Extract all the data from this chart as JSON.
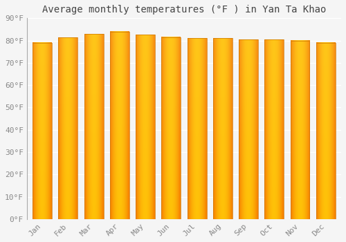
{
  "title": "Average monthly temperatures (°F ) in Yan Ta Khao",
  "months": [
    "Jan",
    "Feb",
    "Mar",
    "Apr",
    "May",
    "Jun",
    "Jul",
    "Aug",
    "Sep",
    "Oct",
    "Nov",
    "Dec"
  ],
  "values": [
    79.0,
    81.3,
    82.9,
    84.0,
    82.5,
    81.5,
    81.0,
    81.0,
    80.5,
    80.5,
    80.0,
    79.0
  ],
  "bar_color_center": "#FFB300",
  "bar_color_edge": "#F57C00",
  "bar_color_bottom": "#FFD54F",
  "ylim": [
    0,
    90
  ],
  "yticks": [
    0,
    10,
    20,
    30,
    40,
    50,
    60,
    70,
    80,
    90
  ],
  "ytick_labels": [
    "0°F",
    "10°F",
    "20°F",
    "30°F",
    "40°F",
    "50°F",
    "60°F",
    "70°F",
    "80°F",
    "90°F"
  ],
  "background_color": "#F5F5F5",
  "grid_color": "#FFFFFF",
  "title_fontsize": 10,
  "tick_fontsize": 8,
  "font_family": "monospace"
}
